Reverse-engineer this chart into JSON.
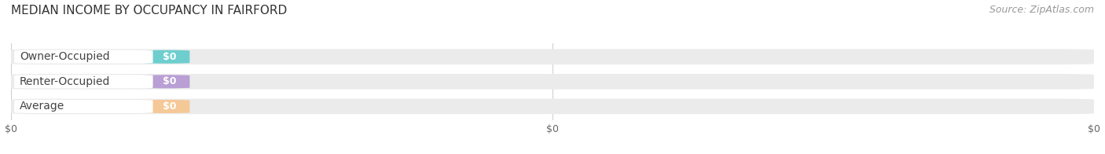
{
  "title": "MEDIAN INCOME BY OCCUPANCY IN FAIRFORD",
  "source": "Source: ZipAtlas.com",
  "categories": [
    "Owner-Occupied",
    "Renter-Occupied",
    "Average"
  ],
  "values": [
    0,
    0,
    0
  ],
  "bar_colors": [
    "#6ecece",
    "#b99fd4",
    "#f5c897"
  ],
  "bar_bg_color": "#ebebeb",
  "value_labels": [
    "$0",
    "$0",
    "$0"
  ],
  "x_tick_labels": [
    "$0",
    "$0",
    "$0"
  ],
  "xlim": [
    0,
    1.0
  ],
  "title_fontsize": 11,
  "source_fontsize": 9,
  "label_fontsize": 10,
  "tick_fontsize": 9,
  "bg_color": "#ffffff",
  "label_white_bg": "#ffffff",
  "grid_color": "#cccccc"
}
